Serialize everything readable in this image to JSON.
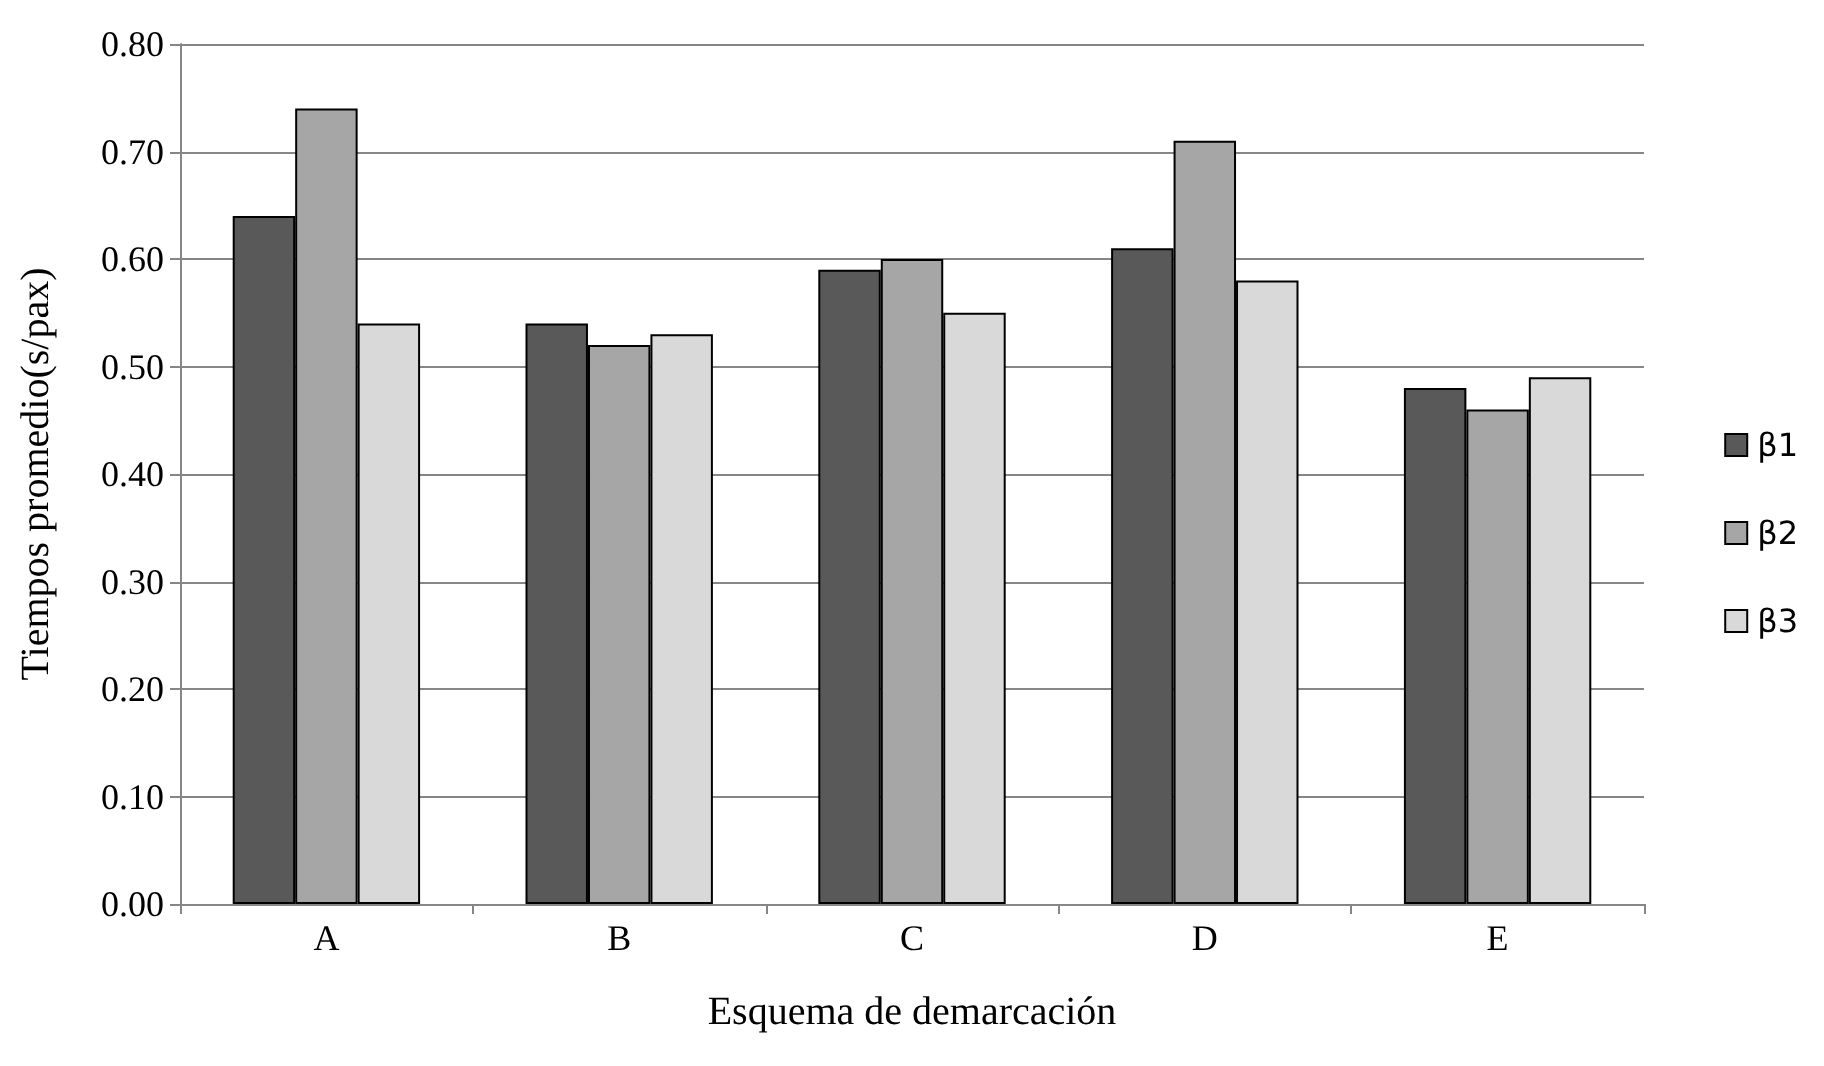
{
  "chart_data": {
    "type": "bar",
    "xlabel": "Esquema de demarcación",
    "ylabel": "Tiempos promedio(s/pax)",
    "categories": [
      "A",
      "B",
      "C",
      "D",
      "E"
    ],
    "series": [
      {
        "name": "β1",
        "color": "#595959",
        "values": [
          0.64,
          0.54,
          0.59,
          0.61,
          0.48
        ]
      },
      {
        "name": "β2",
        "color": "#a6a6a6",
        "values": [
          0.74,
          0.52,
          0.6,
          0.71,
          0.46
        ]
      },
      {
        "name": "β3",
        "color": "#d9d9d9",
        "values": [
          0.54,
          0.53,
          0.55,
          0.58,
          0.49
        ]
      }
    ],
    "ylim": [
      0,
      0.8
    ],
    "yticks": [
      {
        "value": 0,
        "label": "0.00"
      },
      {
        "value": 0.1,
        "label": "0.10"
      },
      {
        "value": 0.2,
        "label": "0.20"
      },
      {
        "value": 0.3,
        "label": "0.30"
      },
      {
        "value": 0.4,
        "label": "0.40"
      },
      {
        "value": 0.5,
        "label": "0.50"
      },
      {
        "value": 0.6,
        "label": "0.60"
      },
      {
        "value": 0.7,
        "label": "0.70"
      },
      {
        "value": 0.8,
        "label": "0.80"
      }
    ],
    "grid": "y",
    "legend": "right"
  }
}
